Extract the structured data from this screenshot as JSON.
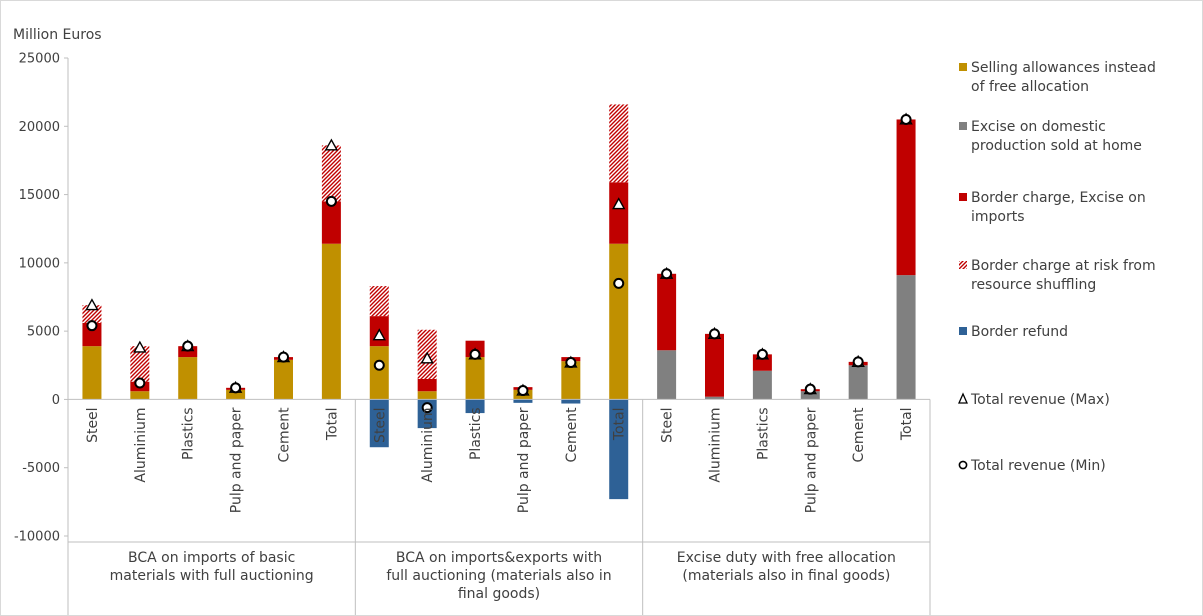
{
  "chart_data": {
    "type": "bar",
    "stacked": true,
    "ylabel": "Million Euros",
    "ylim": [
      -10000,
      25000
    ],
    "yticks": [
      -10000,
      -5000,
      0,
      5000,
      10000,
      15000,
      20000,
      25000
    ],
    "grid": false,
    "legend_position": "right",
    "colors": {
      "selling": "#C09000",
      "excise_domestic": "#808080",
      "border_charge": "#C00000",
      "at_risk": "#C00000",
      "refund": "#2E6196"
    },
    "groups": [
      {
        "label": "BCA on imports of basic materials with full auctioning",
        "label_lines": [
          "BCA on imports of basic",
          "materials with full auctioning"
        ],
        "categories": [
          "Steel",
          "Aluminium",
          "Plastics",
          "Pulp and paper",
          "Cement",
          "Total"
        ],
        "series": {
          "selling": [
            3900,
            600,
            3100,
            700,
            2900,
            11400
          ],
          "excise_domestic": [
            0,
            0,
            0,
            0,
            0,
            0
          ],
          "border_charge": [
            1700,
            700,
            800,
            150,
            200,
            3100
          ],
          "at_risk": [
            1300,
            2600,
            0,
            0,
            0,
            4100
          ],
          "refund": [
            0,
            0,
            0,
            0,
            0,
            0
          ]
        },
        "max": [
          6900,
          3800,
          3900,
          850,
          3100,
          18600
        ],
        "min": [
          5400,
          1200,
          3900,
          850,
          3100,
          14500
        ]
      },
      {
        "label": "BCA on imports&exports with full auctioning (materials also in final goods)",
        "label_lines": [
          "BCA on imports&exports with",
          "full auctioning (materials also in",
          "final goods)"
        ],
        "categories": [
          "Steel",
          "Aluminium",
          "Plastics",
          "Pulp and paper",
          "Cement",
          "Total"
        ],
        "series": {
          "selling": [
            3900,
            600,
            3100,
            700,
            2800,
            11400
          ],
          "excise_domestic": [
            0,
            0,
            0,
            0,
            0,
            0
          ],
          "border_charge": [
            2200,
            900,
            1200,
            200,
            300,
            4500
          ],
          "at_risk": [
            2200,
            3600,
            0,
            0,
            0,
            5700
          ],
          "refund": [
            -3500,
            -2100,
            -1000,
            -250,
            -300,
            -7300
          ]
        },
        "max": [
          4700,
          3000,
          3300,
          650,
          2700,
          14300
        ],
        "min": [
          2500,
          -600,
          3300,
          650,
          2700,
          8500
        ]
      },
      {
        "label": "Excise duty with free allocation (materials also in final goods)",
        "label_lines": [
          "Excise duty with free allocation",
          "(materials also in final goods)"
        ],
        "categories": [
          "Steel",
          "Aluminium",
          "Plastics",
          "Pulp and paper",
          "Cement",
          "Total"
        ],
        "series": {
          "selling": [
            0,
            0,
            0,
            0,
            0,
            0
          ],
          "excise_domestic": [
            3600,
            200,
            2100,
            600,
            2500,
            9100
          ],
          "border_charge": [
            5600,
            4600,
            1200,
            150,
            250,
            11400
          ],
          "at_risk": [
            0,
            0,
            0,
            0,
            0,
            0
          ],
          "refund": [
            0,
            0,
            0,
            0,
            0,
            0
          ]
        },
        "max": [
          9200,
          4800,
          3300,
          750,
          2750,
          20500
        ],
        "min": [
          9200,
          4800,
          3300,
          750,
          2750,
          20500
        ]
      }
    ],
    "legend": [
      {
        "key": "selling",
        "kind": "solid",
        "lines": [
          "Selling allowances instead",
          "of free allocation"
        ]
      },
      {
        "key": "excise_domestic",
        "kind": "solid",
        "lines": [
          "Excise on domestic",
          "production sold at home"
        ]
      },
      {
        "key": "border_charge",
        "kind": "solid",
        "lines": [
          "Border charge, Excise on",
          "imports"
        ]
      },
      {
        "key": "at_risk",
        "kind": "hatch",
        "lines": [
          "Border charge at risk from",
          "resource shuffling"
        ]
      },
      {
        "key": "refund",
        "kind": "solid",
        "lines": [
          "Border refund"
        ]
      },
      {
        "key": "max",
        "kind": "triangle",
        "lines": [
          "Total revenue (Max)"
        ]
      },
      {
        "key": "min",
        "kind": "circle",
        "lines": [
          "Total revenue (Min)"
        ]
      }
    ]
  }
}
